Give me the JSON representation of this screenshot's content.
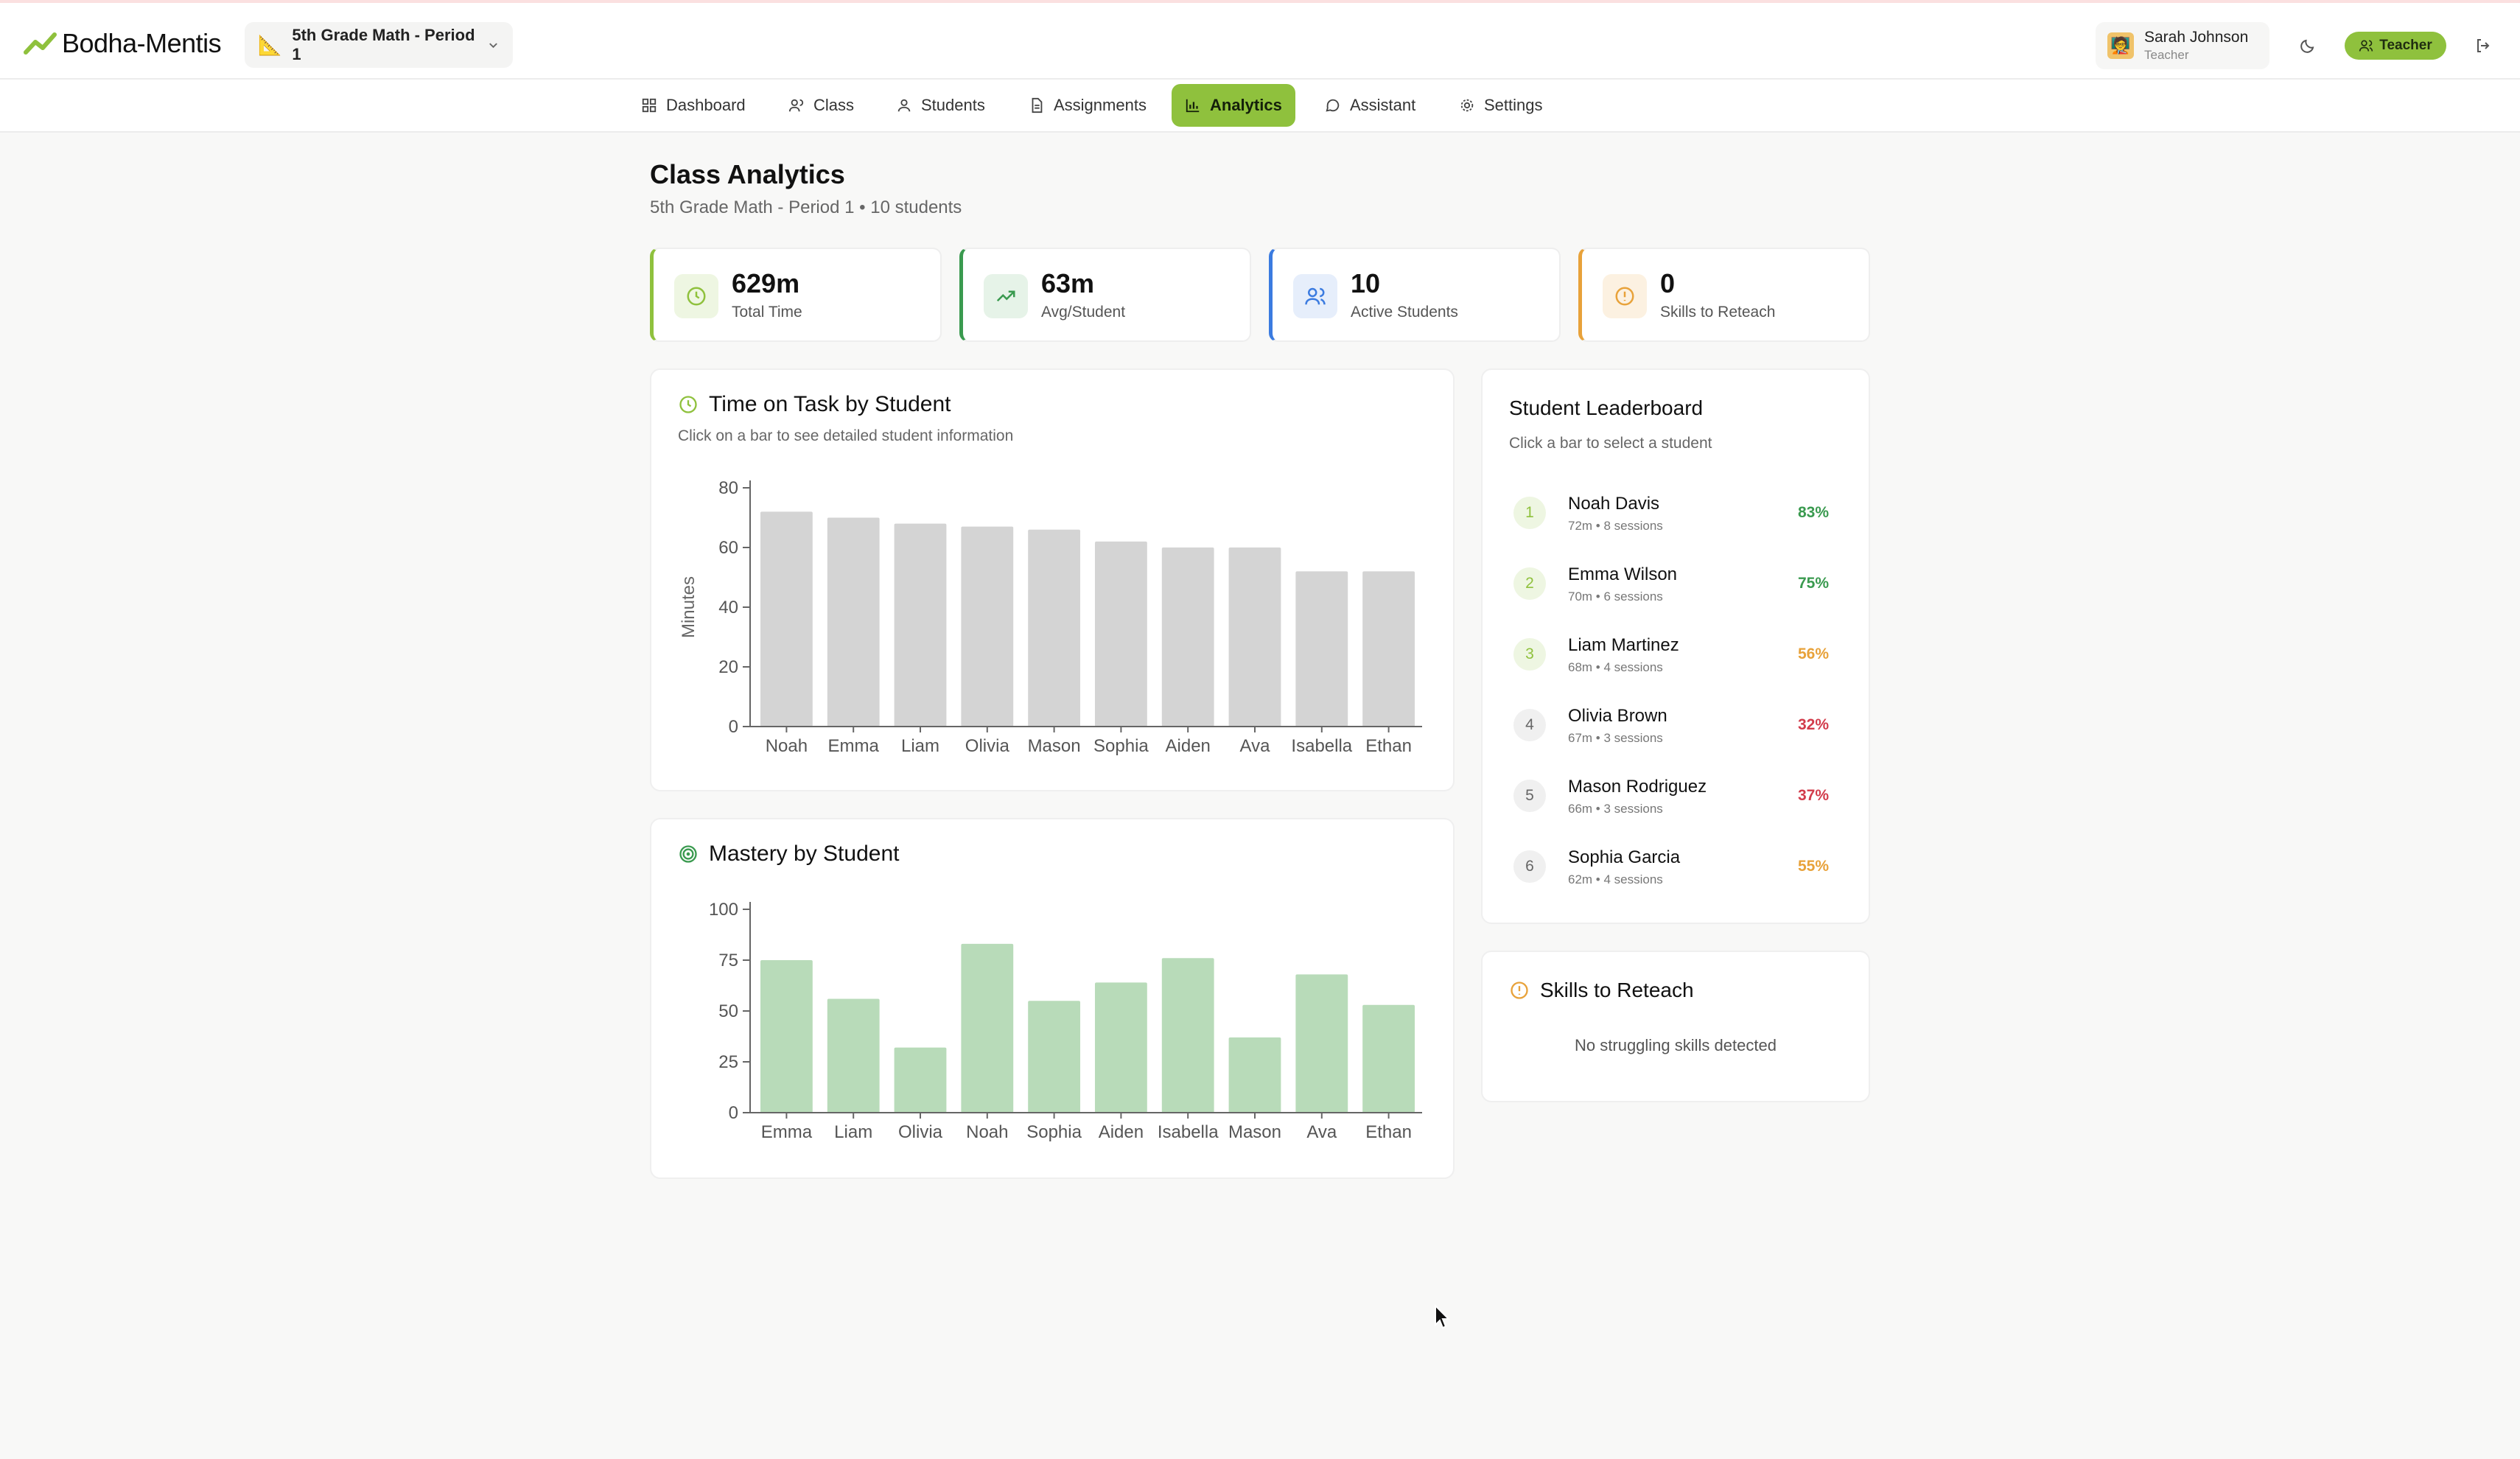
{
  "app": {
    "name": "Bodha-Mentis"
  },
  "class_selector": {
    "label": "5th Grade Math - Period 1"
  },
  "user": {
    "name": "Sarah Johnson",
    "role": "Teacher",
    "role_badge": "Teacher"
  },
  "nav": {
    "tabs": [
      {
        "label": "Dashboard",
        "icon": "grid-icon"
      },
      {
        "label": "Class",
        "icon": "users-icon"
      },
      {
        "label": "Students",
        "icon": "user-icon"
      },
      {
        "label": "Assignments",
        "icon": "file-icon"
      },
      {
        "label": "Analytics",
        "icon": "bar-chart-icon",
        "active": true
      },
      {
        "label": "Assistant",
        "icon": "chat-icon"
      },
      {
        "label": "Settings",
        "icon": "gear-icon"
      }
    ]
  },
  "page": {
    "title": "Class Analytics",
    "subtitle": "5th Grade Math - Period 1 • 10 students"
  },
  "stats": [
    {
      "value": "629m",
      "label": "Total Time",
      "icon": "clock-icon",
      "color": "#8fc13d"
    },
    {
      "value": "63m",
      "label": "Avg/Student",
      "icon": "trending-up-icon",
      "color": "#3a9a4f"
    },
    {
      "value": "10",
      "label": "Active Students",
      "icon": "users-icon",
      "color": "#3b7be0"
    },
    {
      "value": "0",
      "label": "Skills to Reteach",
      "icon": "alert-circle-icon",
      "color": "#e8a23a"
    }
  ],
  "time_chart": {
    "title": "Time on Task by Student",
    "subtitle": "Click on a bar to see detailed student information"
  },
  "mastery_chart": {
    "title": "Mastery by Student"
  },
  "chart_data": [
    {
      "type": "bar",
      "title": "Time on Task by Student",
      "categories": [
        "Noah",
        "Emma",
        "Liam",
        "Olivia",
        "Mason",
        "Sophia",
        "Aiden",
        "Ava",
        "Isabella",
        "Ethan"
      ],
      "values": [
        72,
        70,
        68,
        67,
        66,
        62,
        60,
        60,
        52,
        52
      ],
      "ylabel": "Minutes",
      "ylim": [
        0,
        80
      ],
      "yticks": [
        0,
        20,
        40,
        60,
        80
      ],
      "color": "#d4d4d4"
    },
    {
      "type": "bar",
      "title": "Mastery by Student",
      "categories": [
        "Emma",
        "Liam",
        "Olivia",
        "Noah",
        "Sophia",
        "Aiden",
        "Isabella",
        "Mason",
        "Ava",
        "Ethan"
      ],
      "values": [
        75,
        56,
        32,
        83,
        55,
        64,
        76,
        37,
        68,
        53
      ],
      "ylim": [
        0,
        100
      ],
      "yticks": [
        0,
        25,
        50,
        75,
        100
      ],
      "color": "#b8dbb9"
    }
  ],
  "leaderboard": {
    "title": "Student Leaderboard",
    "subtitle": "Click a bar to select a student",
    "rows": [
      {
        "rank": "1",
        "name": "Noah Davis",
        "meta": "72m • 8 sessions",
        "pct": "83%",
        "pct_color": "#3a9a4f"
      },
      {
        "rank": "2",
        "name": "Emma Wilson",
        "meta": "70m • 6 sessions",
        "pct": "75%",
        "pct_color": "#3a9a4f"
      },
      {
        "rank": "3",
        "name": "Liam Martinez",
        "meta": "68m • 4 sessions",
        "pct": "56%",
        "pct_color": "#e8a23a"
      },
      {
        "rank": "4",
        "name": "Olivia Brown",
        "meta": "67m • 3 sessions",
        "pct": "32%",
        "pct_color": "#d23c4b"
      },
      {
        "rank": "5",
        "name": "Mason Rodriguez",
        "meta": "66m • 3 sessions",
        "pct": "37%",
        "pct_color": "#d23c4b"
      },
      {
        "rank": "6",
        "name": "Sophia Garcia",
        "meta": "62m • 4 sessions",
        "pct": "55%",
        "pct_color": "#e8a23a"
      }
    ]
  },
  "reteach": {
    "title": "Skills to Reteach",
    "empty_text": "No struggling skills detected"
  }
}
